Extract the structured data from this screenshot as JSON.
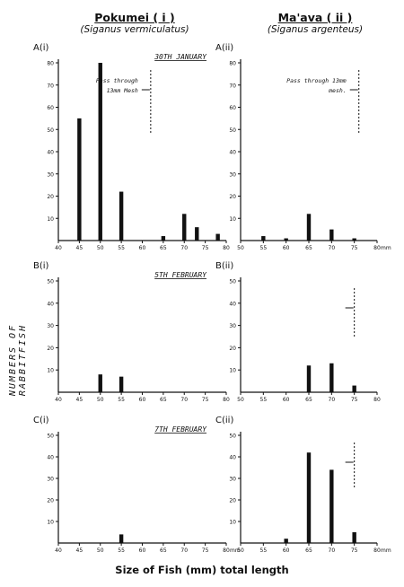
{
  "columns": [
    {
      "title": "Pokumei ( i )",
      "subtitle": "(Siganus vermiculatus)"
    },
    {
      "title": "Ma'ava ( ii )",
      "subtitle": "(Siganus argenteus)"
    }
  ],
  "y_axis_label": "NUMBERS OF RABBITFISH",
  "x_axis_label": "Size of Fish (mm) total length",
  "chart_data": [
    {
      "type": "bar",
      "panel": "A(i)",
      "date": "30TH JANUARY",
      "x": [
        45,
        50,
        55,
        65,
        70,
        73,
        78
      ],
      "values": [
        55,
        80,
        22,
        2,
        12,
        6,
        3
      ],
      "xlim": [
        40,
        80
      ],
      "ylim": [
        0,
        80
      ],
      "yticks": [
        10,
        20,
        30,
        40,
        50,
        60,
        70,
        80
      ],
      "xticks": [
        40,
        45,
        50,
        55,
        60,
        65,
        70,
        75,
        80
      ],
      "annotation": {
        "text": [
          "Pass through",
          "13mm Mesh"
        ],
        "line_x": 62
      }
    },
    {
      "type": "bar",
      "panel": "A(ii)",
      "date": "",
      "x": [
        55,
        60,
        65,
        70,
        75
      ],
      "values": [
        2,
        1,
        12,
        5,
        1
      ],
      "xlim": [
        50,
        80
      ],
      "xunit": "mm",
      "ylim": [
        0,
        80
      ],
      "yticks": [
        10,
        20,
        30,
        40,
        50,
        60,
        70,
        80
      ],
      "xticks": [
        50,
        55,
        60,
        65,
        70,
        75,
        80
      ],
      "annotation": {
        "text": [
          "Pass through 13mm",
          "mesh."
        ],
        "line_x": 76
      }
    },
    {
      "type": "bar",
      "panel": "B(i)",
      "date": "5TH FEBRUARY",
      "x": [
        50,
        55
      ],
      "values": [
        8,
        7
      ],
      "xlim": [
        40,
        80
      ],
      "ylim": [
        0,
        50
      ],
      "yticks": [
        10,
        20,
        30,
        40,
        50
      ],
      "xticks": [
        40,
        45,
        50,
        55,
        60,
        65,
        70,
        75,
        80
      ]
    },
    {
      "type": "bar",
      "panel": "B(ii)",
      "date": "",
      "x": [
        65,
        70,
        75
      ],
      "values": [
        12,
        13,
        3
      ],
      "xlim": [
        50,
        80
      ],
      "ylim": [
        0,
        50
      ],
      "yticks": [
        10,
        20,
        30,
        40,
        50
      ],
      "xticks": [
        50,
        55,
        60,
        65,
        70,
        75,
        80
      ],
      "annotation": {
        "text": [],
        "line_x": 75
      }
    },
    {
      "type": "bar",
      "panel": "C(i)",
      "date": "7TH FEBRUARY",
      "x": [
        55
      ],
      "values": [
        4
      ],
      "xlim": [
        40,
        80
      ],
      "xunit": "mm",
      "ylim": [
        0,
        50
      ],
      "yticks": [
        10,
        20,
        30,
        40,
        50
      ],
      "xticks": [
        40,
        45,
        50,
        55,
        60,
        65,
        70,
        75,
        80
      ]
    },
    {
      "type": "bar",
      "panel": "C(ii)",
      "date": "",
      "x": [
        60,
        65,
        70,
        75
      ],
      "values": [
        2,
        42,
        34,
        5
      ],
      "xlim": [
        50,
        80
      ],
      "xunit": "mm",
      "ylim": [
        0,
        50
      ],
      "yticks": [
        10,
        20,
        30,
        40,
        50
      ],
      "xticks": [
        50,
        55,
        60,
        65,
        70,
        75,
        80
      ],
      "annotation": {
        "text": [],
        "line_x": 75
      }
    }
  ]
}
